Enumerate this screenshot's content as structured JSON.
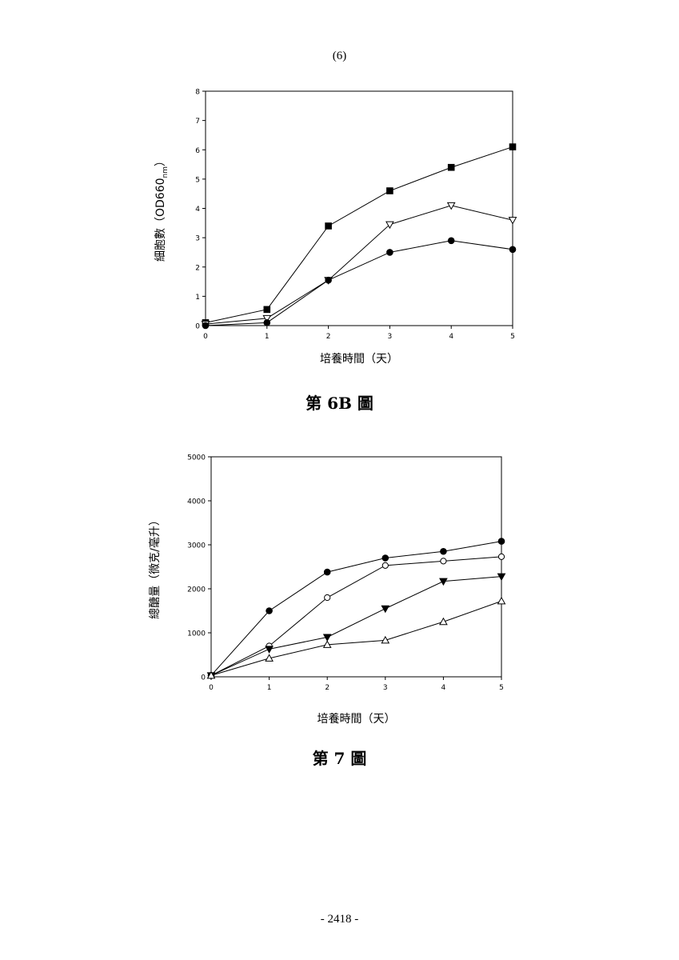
{
  "page": {
    "header_number": "(6)",
    "footer_number": "- 2418 -"
  },
  "figures": [
    {
      "caption": "第 6B 圖"
    },
    {
      "caption": "第 7 圖"
    }
  ],
  "chart_data": [
    {
      "type": "line",
      "xlabel": "培養時間（天）",
      "ylabel": "細胞數（OD660nm）",
      "ylabel_main": "細胞數（OD660",
      "ylabel_sub": "nm",
      "ylabel_end": "）",
      "xlim": [
        0,
        5
      ],
      "ylim": [
        0,
        8
      ],
      "x_ticks": [
        0,
        1,
        2,
        3,
        4,
        5
      ],
      "y_ticks": [
        0,
        1,
        2,
        3,
        4,
        5,
        6,
        7,
        8
      ],
      "grid": false,
      "legend": "none",
      "x": [
        0,
        1,
        2,
        3,
        4,
        5
      ],
      "series": [
        {
          "marker": "filled-square",
          "values": [
            0.1,
            0.55,
            3.4,
            4.6,
            5.4,
            6.1
          ]
        },
        {
          "marker": "open-down-triangle",
          "values": [
            0.05,
            0.25,
            1.55,
            3.45,
            4.1,
            3.6
          ]
        },
        {
          "marker": "filled-circle",
          "values": [
            0.0,
            0.1,
            1.55,
            2.5,
            2.9,
            2.6
          ]
        }
      ]
    },
    {
      "type": "line",
      "xlabel": "培養時間（天）",
      "ylabel": "總醣量（微克/毫升）",
      "xlim": [
        0,
        5
      ],
      "ylim": [
        0,
        5000
      ],
      "x_ticks": [
        0,
        1,
        2,
        3,
        4,
        5
      ],
      "y_ticks": [
        0,
        1000,
        2000,
        3000,
        4000,
        5000
      ],
      "grid": false,
      "legend": "none",
      "x": [
        0,
        1,
        2,
        3,
        4,
        5
      ],
      "series": [
        {
          "marker": "filled-circle",
          "values": [
            30,
            1500,
            2380,
            2700,
            2850,
            3080
          ]
        },
        {
          "marker": "open-circle",
          "values": [
            30,
            700,
            1800,
            2530,
            2630,
            2730
          ]
        },
        {
          "marker": "filled-down-triangle",
          "values": [
            30,
            630,
            900,
            1550,
            2170,
            2280
          ]
        },
        {
          "marker": "open-up-triangle",
          "values": [
            30,
            420,
            730,
            830,
            1250,
            1720
          ]
        }
      ]
    }
  ]
}
